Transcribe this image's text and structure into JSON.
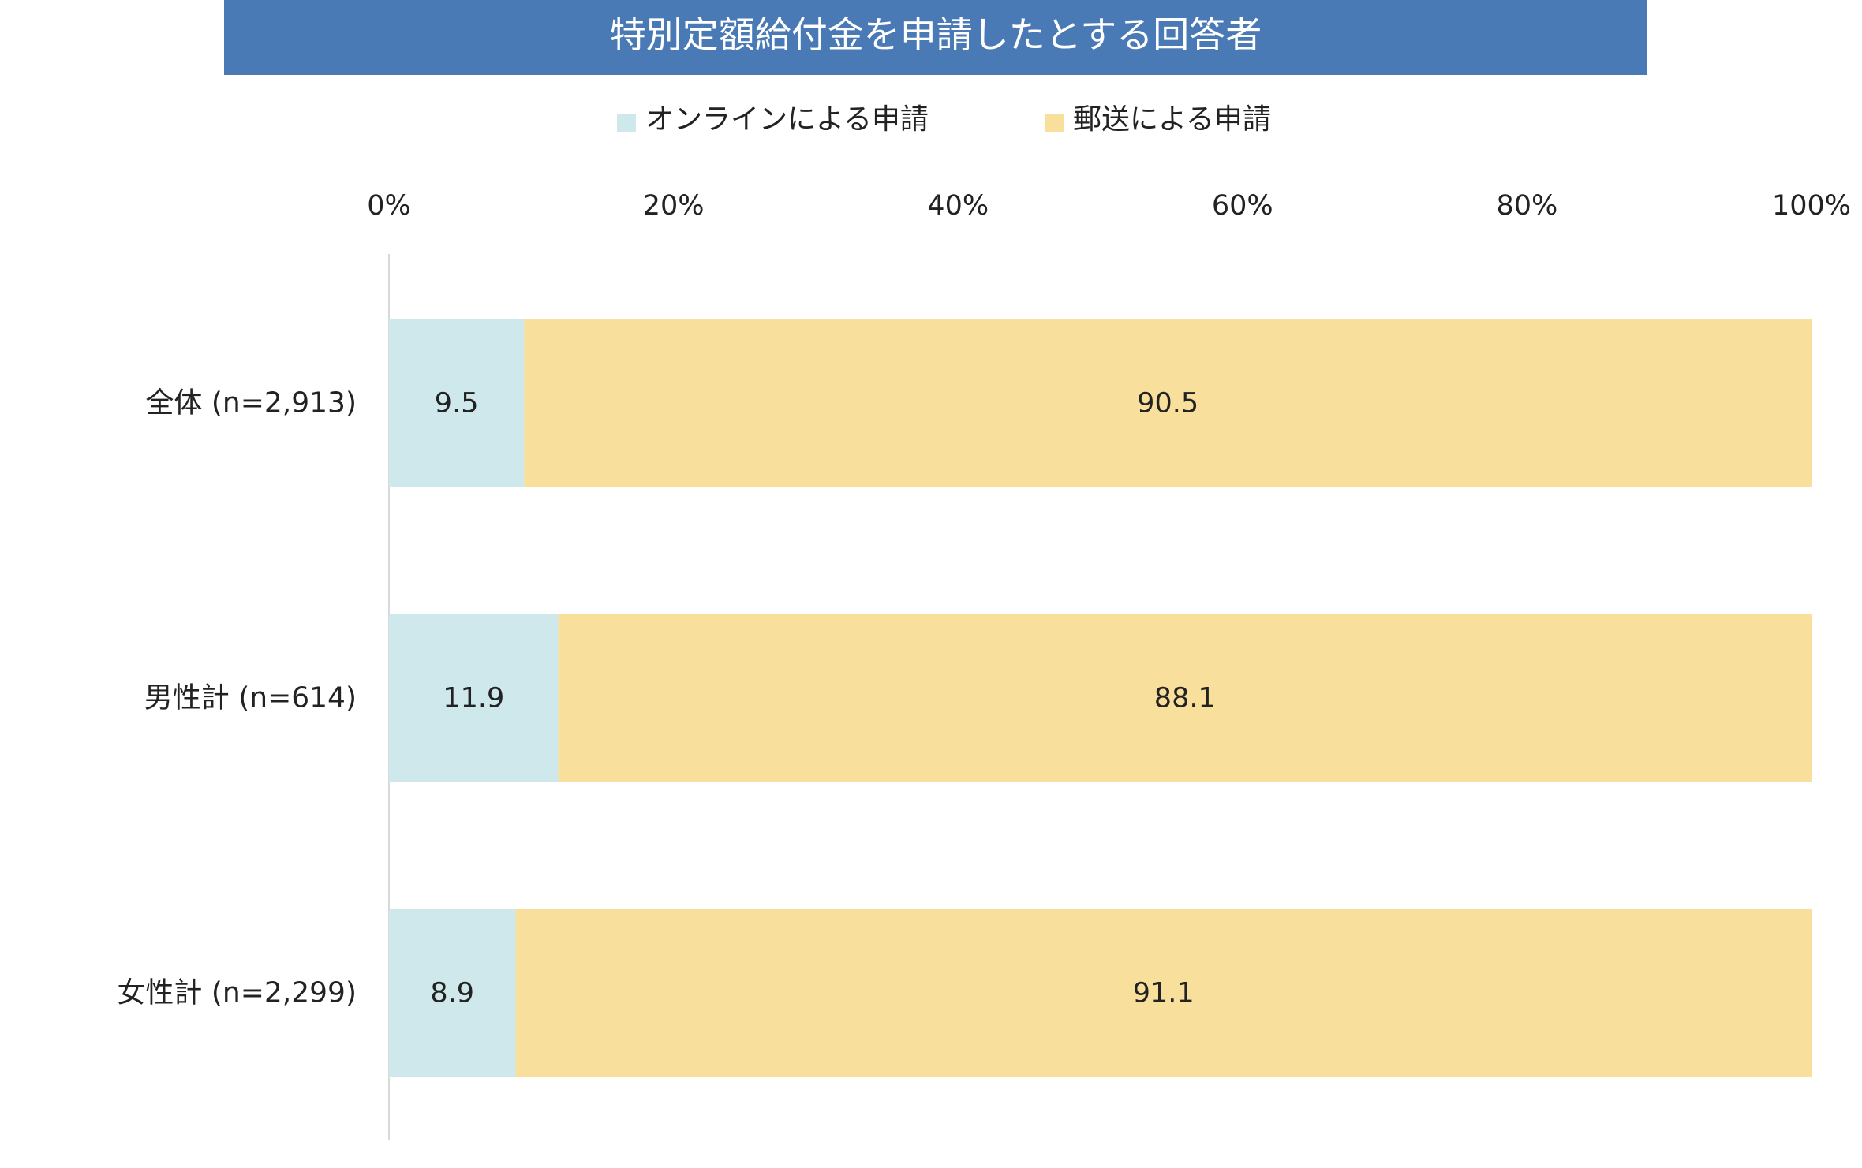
{
  "chart_data": {
    "type": "bar",
    "orientation": "horizontal",
    "stacked": true,
    "title": "特別定額給付金を申請したとする回答者",
    "categories": [
      "全体 (n=2,913)",
      "男性計 (n=614)",
      "女性計 (n=2,299)"
    ],
    "series": [
      {
        "name": "オンラインによる申請",
        "values": [
          9.5,
          11.9,
          8.9
        ],
        "labels": [
          "9.5",
          "11.9",
          "8.9"
        ],
        "color": "#cfe8ec"
      },
      {
        "name": "郵送による申請",
        "values": [
          90.5,
          88.1,
          91.1
        ],
        "labels": [
          "90.5",
          "88.1",
          "91.1"
        ],
        "color": "#f8e09c"
      }
    ],
    "xlim": [
      0,
      100
    ],
    "xticks": [
      "0%",
      "20%",
      "40%",
      "60%",
      "80%",
      "100%"
    ],
    "xtick_values": [
      0,
      20,
      40,
      60,
      80,
      100
    ],
    "x_axis_position": "top",
    "legend_position": "top",
    "grid": false,
    "title_background": "#4a7ab5"
  }
}
